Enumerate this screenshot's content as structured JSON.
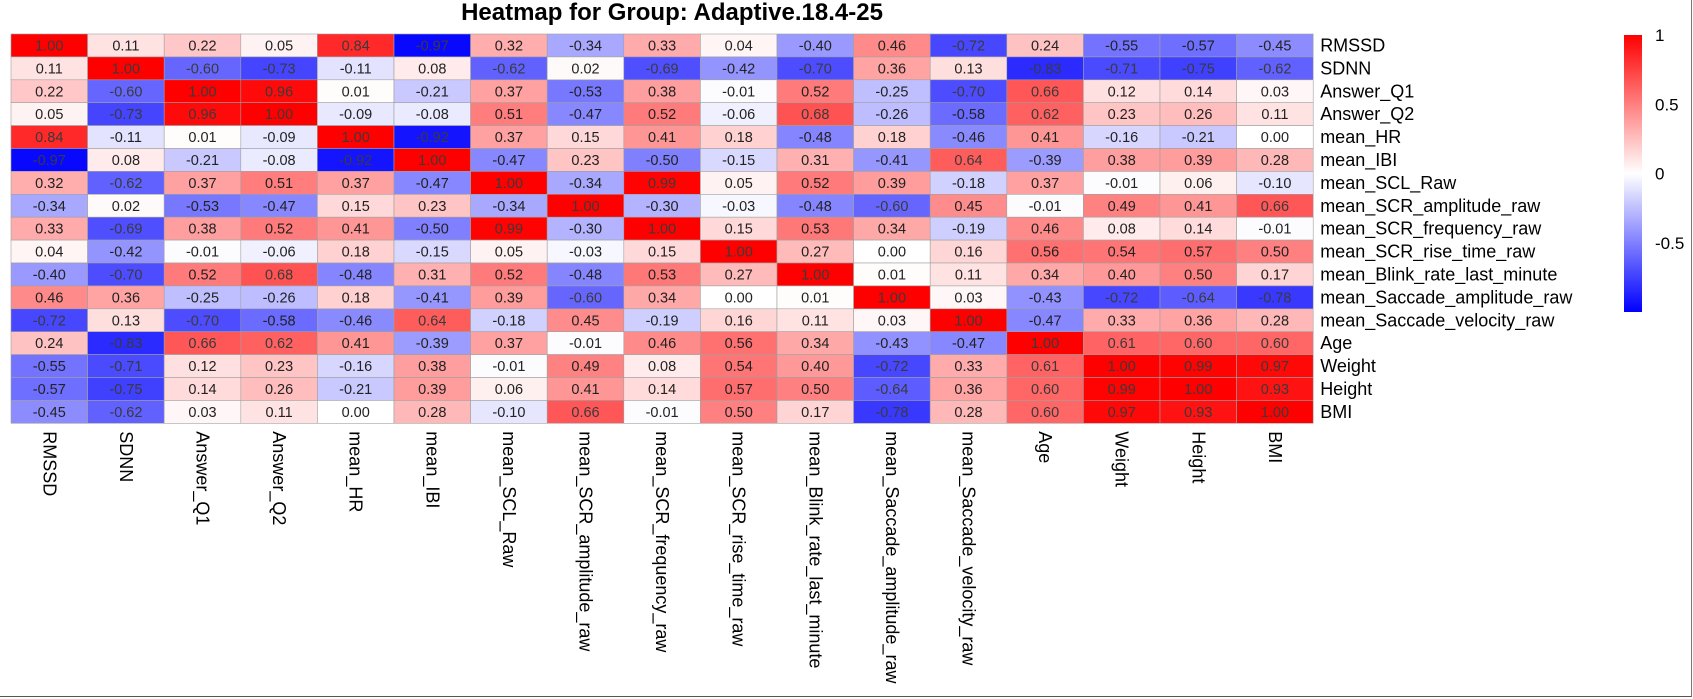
{
  "chart_data": {
    "type": "heatmap",
    "title": "Heatmap for Group: Adaptive.18.4-25",
    "rows": [
      "RMSSD",
      "SDNN",
      "Answer_Q1",
      "Answer_Q2",
      "mean_HR",
      "mean_IBI",
      "mean_SCL_Raw",
      "mean_SCR_amplitude_raw",
      "mean_SCR_frequency_raw",
      "mean_SCR_rise_time_raw",
      "mean_Blink_rate_last_minute",
      "mean_Saccade_amplitude_raw",
      "mean_Saccade_velocity_raw",
      "Age",
      "Weight",
      "Height",
      "BMI"
    ],
    "columns": [
      "RMSSD",
      "SDNN",
      "Answer_Q1",
      "Answer_Q2",
      "mean_HR",
      "mean_IBI",
      "mean_SCL_Raw",
      "mean_SCR_amplitude_raw",
      "mean_SCR_frequency_raw",
      "mean_SCR_rise_time_raw",
      "mean_Blink_rate_last_minute",
      "mean_Saccade_amplitude_raw",
      "mean_Saccade_velocity_raw",
      "Age",
      "Weight",
      "Height",
      "BMI"
    ],
    "values": [
      [
        1.0,
        0.11,
        0.22,
        0.05,
        0.84,
        -0.97,
        0.32,
        -0.34,
        0.33,
        0.04,
        -0.4,
        0.46,
        -0.72,
        0.24,
        -0.55,
        -0.57,
        -0.45
      ],
      [
        0.11,
        1.0,
        -0.6,
        -0.73,
        -0.11,
        0.08,
        -0.62,
        0.02,
        -0.69,
        -0.42,
        -0.7,
        0.36,
        0.13,
        -0.83,
        -0.71,
        -0.75,
        -0.62
      ],
      [
        0.22,
        -0.6,
        1.0,
        0.96,
        0.01,
        -0.21,
        0.37,
        -0.53,
        0.38,
        -0.01,
        0.52,
        -0.25,
        -0.7,
        0.66,
        0.12,
        0.14,
        0.03
      ],
      [
        0.05,
        -0.73,
        0.96,
        1.0,
        -0.09,
        -0.08,
        0.51,
        -0.47,
        0.52,
        -0.06,
        0.68,
        -0.26,
        -0.58,
        0.62,
        0.23,
        0.26,
        0.11
      ],
      [
        0.84,
        -0.11,
        0.01,
        -0.09,
        1.0,
        -0.92,
        0.37,
        0.15,
        0.41,
        0.18,
        -0.48,
        0.18,
        -0.46,
        0.41,
        -0.16,
        -0.21,
        0.0
      ],
      [
        -0.97,
        0.08,
        -0.21,
        -0.08,
        -0.92,
        1.0,
        -0.47,
        0.23,
        -0.5,
        -0.15,
        0.31,
        -0.41,
        0.64,
        -0.39,
        0.38,
        0.39,
        0.28
      ],
      [
        0.32,
        -0.62,
        0.37,
        0.51,
        0.37,
        -0.47,
        1.0,
        -0.34,
        0.99,
        0.05,
        0.52,
        0.39,
        -0.18,
        0.37,
        -0.01,
        0.06,
        -0.1
      ],
      [
        -0.34,
        0.02,
        -0.53,
        -0.47,
        0.15,
        0.23,
        -0.34,
        1.0,
        -0.3,
        -0.03,
        -0.48,
        -0.6,
        0.45,
        -0.01,
        0.49,
        0.41,
        0.66
      ],
      [
        0.33,
        -0.69,
        0.38,
        0.52,
        0.41,
        -0.5,
        0.99,
        -0.3,
        1.0,
        0.15,
        0.53,
        0.34,
        -0.19,
        0.46,
        0.08,
        0.14,
        -0.01
      ],
      [
        0.04,
        -0.42,
        -0.01,
        -0.06,
        0.18,
        -0.15,
        0.05,
        -0.03,
        0.15,
        1.0,
        0.27,
        0.0,
        0.16,
        0.56,
        0.54,
        0.57,
        0.5
      ],
      [
        -0.4,
        -0.7,
        0.52,
        0.68,
        -0.48,
        0.31,
        0.52,
        -0.48,
        0.53,
        0.27,
        1.0,
        0.01,
        0.11,
        0.34,
        0.4,
        0.5,
        0.17
      ],
      [
        0.46,
        0.36,
        -0.25,
        -0.26,
        0.18,
        -0.41,
        0.39,
        -0.6,
        0.34,
        0.0,
        0.01,
        1.0,
        0.03,
        -0.43,
        -0.72,
        -0.64,
        -0.78
      ],
      [
        -0.72,
        0.13,
        -0.7,
        -0.58,
        -0.46,
        0.64,
        -0.18,
        0.45,
        -0.19,
        0.16,
        0.11,
        0.03,
        1.0,
        -0.47,
        0.33,
        0.36,
        0.28
      ],
      [
        0.24,
        -0.83,
        0.66,
        0.62,
        0.41,
        -0.39,
        0.37,
        -0.01,
        0.46,
        0.56,
        0.34,
        -0.43,
        -0.47,
        1.0,
        0.61,
        0.6,
        0.6
      ],
      [
        -0.55,
        -0.71,
        0.12,
        0.23,
        -0.16,
        0.38,
        -0.01,
        0.49,
        0.08,
        0.54,
        0.4,
        -0.72,
        0.33,
        0.61,
        1.0,
        0.99,
        0.97
      ],
      [
        -0.57,
        -0.75,
        0.14,
        0.26,
        -0.21,
        0.39,
        0.06,
        0.41,
        0.14,
        0.57,
        0.5,
        -0.64,
        0.36,
        0.6,
        0.99,
        1.0,
        0.93
      ],
      [
        -0.45,
        -0.62,
        0.03,
        0.11,
        0.0,
        0.28,
        -0.1,
        0.66,
        -0.01,
        0.5,
        0.17,
        -0.78,
        0.28,
        0.6,
        0.97,
        0.93,
        1.0
      ]
    ],
    "value_range": [
      -1,
      1
    ],
    "colors": {
      "low": "#0000ff",
      "mid": "#ffffff",
      "high": "#ff0000"
    },
    "legend": {
      "position": "right",
      "ticks": [
        1,
        0.5,
        0,
        -0.5
      ],
      "tick_labels": [
        "1",
        "0.5",
        "0",
        "-0.5"
      ]
    }
  }
}
